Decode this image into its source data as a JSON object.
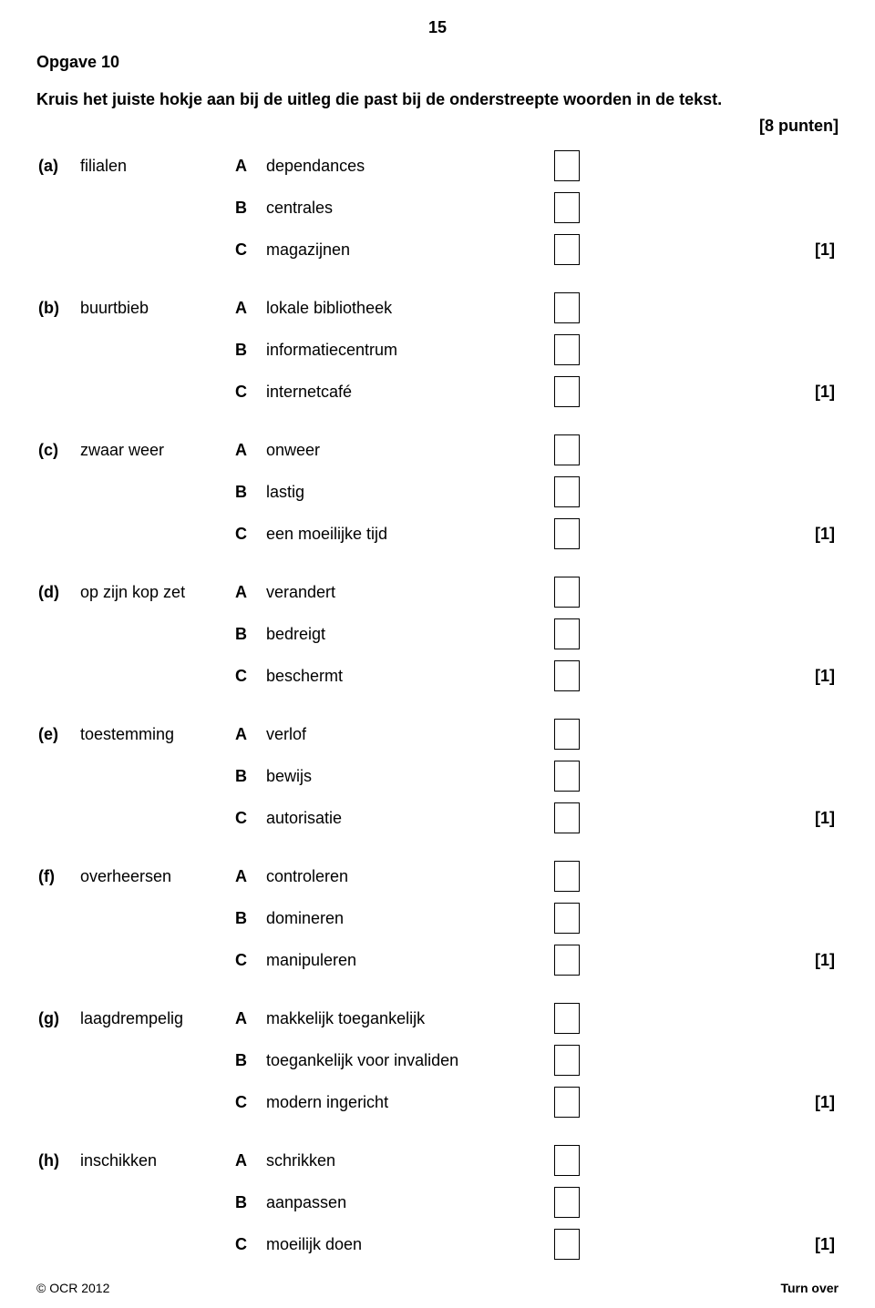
{
  "page_number": "15",
  "task_title": "Opgave 10",
  "instruction": "Kruis het juiste hokje aan bij de uitleg die past bij de onderstreepte woorden in de tekst.",
  "points_total": "[8 punten]",
  "mark_each": "[1]",
  "footer_left": "© OCR 2012",
  "footer_right": "Turn over",
  "questions": [
    {
      "letter": "(a)",
      "term": "filialen",
      "options": [
        {
          "letter": "A",
          "text": "dependances"
        },
        {
          "letter": "B",
          "text": "centrales"
        },
        {
          "letter": "C",
          "text": "magazijnen"
        }
      ]
    },
    {
      "letter": "(b)",
      "term": "buurtbieb",
      "options": [
        {
          "letter": "A",
          "text": "lokale bibliotheek"
        },
        {
          "letter": "B",
          "text": "informatiecentrum"
        },
        {
          "letter": "C",
          "text": "internetcafé"
        }
      ]
    },
    {
      "letter": "(c)",
      "term": "zwaar weer",
      "options": [
        {
          "letter": "A",
          "text": "onweer"
        },
        {
          "letter": "B",
          "text": "lastig"
        },
        {
          "letter": "C",
          "text": "een moeilijke tijd"
        }
      ]
    },
    {
      "letter": "(d)",
      "term": "op zijn kop zet",
      "options": [
        {
          "letter": "A",
          "text": "verandert"
        },
        {
          "letter": "B",
          "text": "bedreigt"
        },
        {
          "letter": "C",
          "text": "beschermt"
        }
      ]
    },
    {
      "letter": "(e)",
      "term": "toestemming",
      "options": [
        {
          "letter": "A",
          "text": "verlof"
        },
        {
          "letter": "B",
          "text": "bewijs"
        },
        {
          "letter": "C",
          "text": "autorisatie"
        }
      ]
    },
    {
      "letter": "(f)",
      "term": "overheersen",
      "options": [
        {
          "letter": "A",
          "text": "controleren"
        },
        {
          "letter": "B",
          "text": "domineren"
        },
        {
          "letter": "C",
          "text": "manipuleren"
        }
      ]
    },
    {
      "letter": "(g)",
      "term": "laagdrempelig",
      "options": [
        {
          "letter": "A",
          "text": "makkelijk toegankelijk"
        },
        {
          "letter": "B",
          "text": "toegankelijk voor invaliden"
        },
        {
          "letter": "C",
          "text": "modern ingericht"
        }
      ]
    },
    {
      "letter": "(h)",
      "term": "inschikken",
      "options": [
        {
          "letter": "A",
          "text": "schrikken"
        },
        {
          "letter": "B",
          "text": "aanpassen"
        },
        {
          "letter": "C",
          "text": "moeilijk doen"
        }
      ]
    }
  ]
}
